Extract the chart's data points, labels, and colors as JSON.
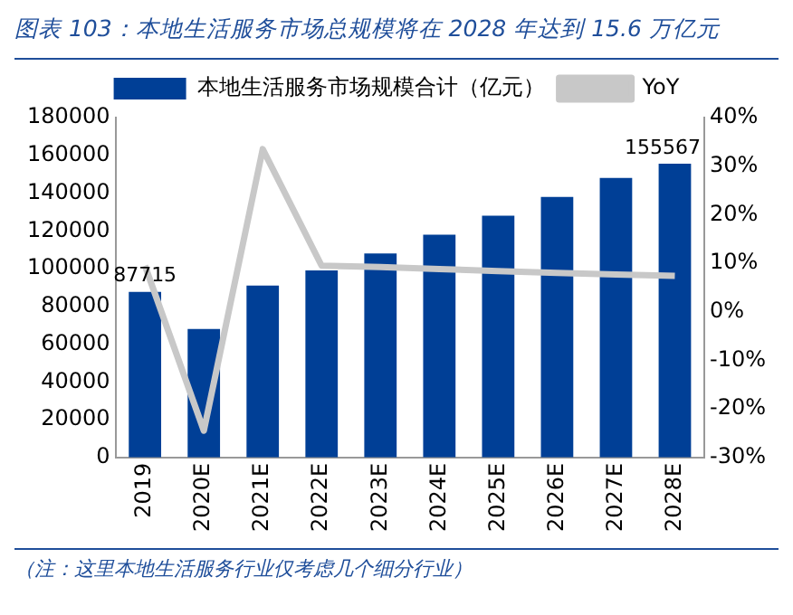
{
  "chart_data": {
    "type": "bar",
    "title": "图表 103：本地生活服务市场总规模将在 2028 年达到 15.6 万亿元",
    "categories": [
      "2019",
      "2020E",
      "2021E",
      "2022E",
      "2023E",
      "2024E",
      "2025E",
      "2026E",
      "2027E",
      "2028E"
    ],
    "series": [
      {
        "name": "本地生活服务市场规模合计（亿元）",
        "color": "#003f96",
        "values": [
          87715,
          68000,
          91000,
          99000,
          108000,
          118000,
          128000,
          138000,
          148000,
          155567
        ],
        "value_labels": [
          "87715",
          null,
          null,
          null,
          null,
          null,
          null,
          null,
          null,
          "155567"
        ]
      },
      {
        "name": "YoY",
        "type": "line",
        "axis": "y2",
        "color": "#c8c8c8",
        "values": [
          9.5,
          -24.5,
          33.5,
          9.5,
          9.2,
          8.8,
          8.4,
          8.0,
          7.7,
          7.4
        ]
      }
    ],
    "ylim": [
      0,
      180000
    ],
    "yticks": [
      0,
      20000,
      40000,
      60000,
      80000,
      100000,
      120000,
      140000,
      160000,
      180000
    ],
    "y2lim": [
      -30,
      40
    ],
    "y2ticks": [
      {
        "value": -30,
        "label": "-30%"
      },
      {
        "value": -20,
        "label": "-20%"
      },
      {
        "value": -10,
        "label": "-10%"
      },
      {
        "value": 0,
        "label": "0%"
      },
      {
        "value": 10,
        "label": "10%"
      },
      {
        "value": 20,
        "label": "20%"
      },
      {
        "value": 30,
        "label": "30%"
      },
      {
        "value": 40,
        "label": "40%"
      }
    ],
    "legend": "top",
    "grid": false,
    "marker": "none",
    "annotations": [
      "（注：这里本地生活服务行业仅考虑几个细分行业）"
    ]
  }
}
